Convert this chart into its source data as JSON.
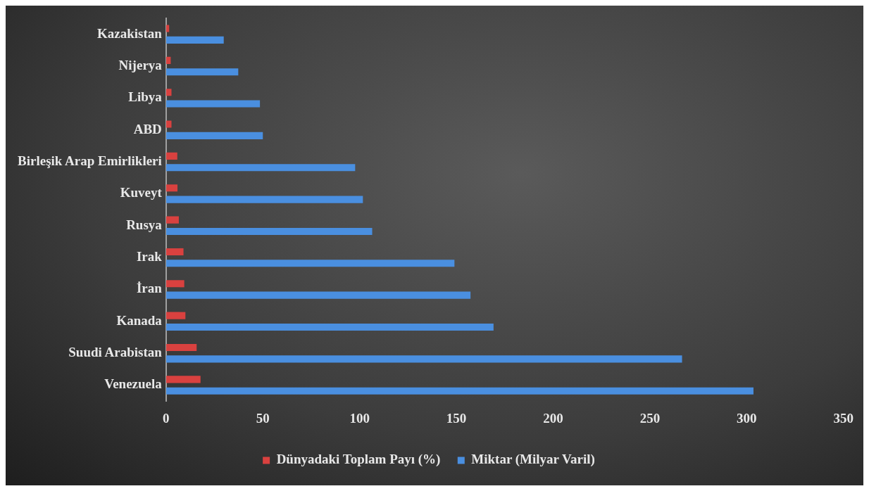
{
  "chart_data": {
    "type": "bar",
    "orientation": "horizontal",
    "categories": [
      "Kazakistan",
      "Nijerya",
      "Libya",
      "ABD",
      "Birleşik Arap Emirlikleri",
      "Kuveyt",
      "Rusya",
      "Irak",
      "İran",
      "Kanada",
      "Suudi Arabistan",
      "Venezuela"
    ],
    "series": [
      {
        "name": "Dünyadaki Toplam Payı (%)",
        "color": "#d9413f",
        "values": [
          1.6,
          2.4,
          2.8,
          2.8,
          5.8,
          5.9,
          6.6,
          9,
          9.4,
          10,
          15.8,
          17.8
        ]
      },
      {
        "name": "Miktar (Milyar Varil)",
        "color": "#4a8fe0",
        "values": [
          29.8,
          37.3,
          48.5,
          50,
          97.7,
          101.7,
          106.5,
          149,
          157.3,
          169.2,
          266.6,
          303.5
        ]
      }
    ],
    "xlim": [
      0,
      350
    ],
    "xticks": [
      0,
      50,
      100,
      150,
      200,
      250,
      300,
      350
    ],
    "grid": false,
    "legend": "bottom"
  }
}
